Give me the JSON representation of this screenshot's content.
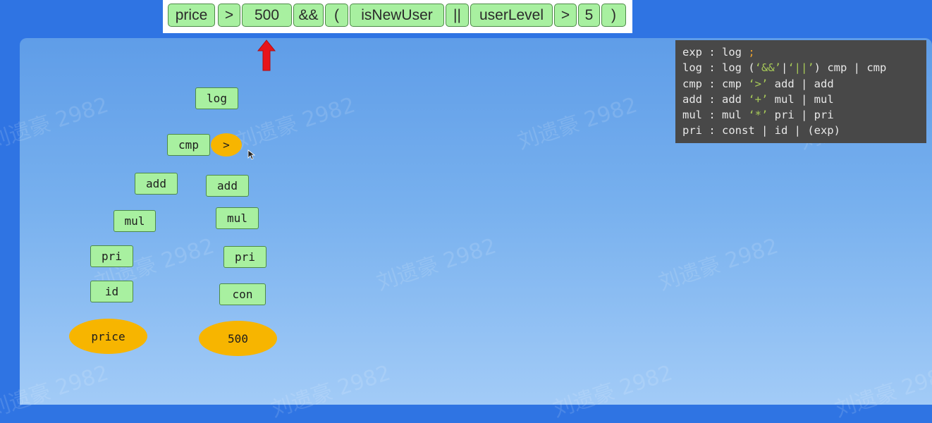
{
  "tokens": [
    "price",
    ">",
    "500",
    "&&",
    "(",
    "isNewUser",
    "||",
    "userLevel",
    ">",
    "5",
    ")"
  ],
  "tree": {
    "log": "log",
    "cmp": "cmp",
    "op": ">",
    "left": {
      "add": "add",
      "mul": "mul",
      "pri": "pri",
      "id": "id",
      "leaf": "price"
    },
    "right": {
      "add": "add",
      "mul": "mul",
      "pri": "pri",
      "con": "con",
      "leaf": "500"
    }
  },
  "grammar": {
    "rules": [
      {
        "lhs": "exp",
        "rhs_pre": "log ",
        "semi": ";"
      },
      {
        "lhs": "log",
        "rhs_pre": "log (",
        "str1": "‘&&’",
        "mid1": "|",
        "str2": "‘||’",
        "rhs_post": ") cmp | cmp"
      },
      {
        "lhs": "cmp",
        "rhs_pre": "cmp ",
        "str1": "‘>’",
        "rhs_post": " add | add"
      },
      {
        "lhs": "add",
        "rhs_pre": "add ",
        "str1": "‘+’",
        "rhs_post": " mul | mul"
      },
      {
        "lhs": "mul",
        "rhs_pre": "mul ",
        "str1": "‘*’",
        "rhs_post": " pri | pri"
      },
      {
        "lhs": "pri",
        "rhs_pre": "const | id | (exp)"
      }
    ]
  },
  "watermark": "刘遗豪 2982",
  "colors": {
    "node_fill": "#a8f0a0",
    "leaf_fill": "#f7b500",
    "arrow": "#e8141a",
    "grammar_bg": "#484848"
  }
}
